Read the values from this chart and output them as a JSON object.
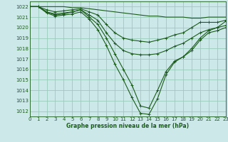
{
  "title": "Graphe pression niveau de la mer (hPa)",
  "background_color": "#cce8e8",
  "grid_color": "#99ccbb",
  "line_color": "#1a5c1a",
  "xlim": [
    0,
    23
  ],
  "ylim": [
    1011.5,
    1022.5
  ],
  "yticks": [
    1012,
    1013,
    1014,
    1015,
    1016,
    1017,
    1018,
    1019,
    1020,
    1021,
    1022
  ],
  "xticks": [
    0,
    1,
    2,
    3,
    4,
    5,
    6,
    7,
    8,
    9,
    10,
    11,
    12,
    13,
    14,
    15,
    16,
    17,
    18,
    19,
    20,
    21,
    22,
    23
  ],
  "series": [
    {
      "x": [
        0,
        1,
        2,
        3,
        4,
        5,
        6,
        7,
        8,
        9,
        10,
        11,
        12,
        13,
        14,
        15,
        16,
        17,
        18,
        19,
        20,
        21,
        22,
        23
      ],
      "y": [
        1022,
        1022,
        1022,
        1022,
        1022,
        1021.9,
        1021.9,
        1021.8,
        1021.7,
        1021.6,
        1021.5,
        1021.4,
        1021.3,
        1021.2,
        1021.1,
        1021.1,
        1021.0,
        1021.0,
        1021.0,
        1020.9,
        1020.9,
        1021.0,
        1021.0,
        1021.0
      ],
      "marker": false,
      "linewidth": 0.8
    },
    {
      "x": [
        0,
        1,
        2,
        3,
        4,
        5,
        6,
        7,
        8,
        9,
        10,
        11,
        12,
        13,
        14,
        15,
        16,
        17,
        18,
        19,
        20,
        21,
        22,
        23
      ],
      "y": [
        1022,
        1022,
        1021.7,
        1021.5,
        1021.6,
        1021.7,
        1021.8,
        1021.5,
        1021.2,
        1020.3,
        1019.5,
        1019.0,
        1018.8,
        1018.7,
        1018.6,
        1018.8,
        1019.0,
        1019.3,
        1019.5,
        1020.0,
        1020.5,
        1020.5,
        1020.5,
        1020.7
      ],
      "marker": true,
      "linewidth": 0.8
    },
    {
      "x": [
        0,
        1,
        2,
        3,
        4,
        5,
        6,
        7,
        8,
        9,
        10,
        11,
        12,
        13,
        14,
        15,
        16,
        17,
        18,
        19,
        20,
        21,
        22,
        23
      ],
      "y": [
        1022,
        1022,
        1021.5,
        1021.3,
        1021.4,
        1021.5,
        1021.7,
        1021.2,
        1020.7,
        1019.5,
        1018.5,
        1017.8,
        1017.5,
        1017.4,
        1017.4,
        1017.5,
        1017.8,
        1018.2,
        1018.5,
        1019.0,
        1019.5,
        1019.8,
        1020.0,
        1020.2
      ],
      "marker": true,
      "linewidth": 0.8
    },
    {
      "x": [
        0,
        1,
        2,
        3,
        4,
        5,
        6,
        7,
        8,
        9,
        10,
        11,
        12,
        13,
        14,
        15,
        16,
        17,
        18,
        19,
        20,
        21,
        22,
        23
      ],
      "y": [
        1022,
        1022,
        1021.5,
        1021.2,
        1021.3,
        1021.5,
        1021.7,
        1021.0,
        1020.3,
        1019.0,
        1017.5,
        1016.0,
        1014.5,
        1012.5,
        1012.3,
        1014.0,
        1015.8,
        1016.8,
        1017.2,
        1018.0,
        1019.0,
        1019.7,
        1020.0,
        1020.6
      ],
      "marker": true,
      "linewidth": 0.8
    },
    {
      "x": [
        0,
        1,
        2,
        3,
        4,
        5,
        6,
        7,
        8,
        9,
        10,
        11,
        12,
        13,
        14,
        15,
        16,
        17,
        18,
        19,
        20,
        21,
        22,
        23
      ],
      "y": [
        1022,
        1022,
        1021.4,
        1021.1,
        1021.2,
        1021.3,
        1021.5,
        1020.8,
        1019.8,
        1018.3,
        1016.5,
        1015.0,
        1013.3,
        1011.8,
        1011.7,
        1013.2,
        1015.5,
        1016.7,
        1017.2,
        1017.8,
        1018.8,
        1019.5,
        1019.7,
        1020.0
      ],
      "marker": true,
      "linewidth": 0.8
    }
  ]
}
